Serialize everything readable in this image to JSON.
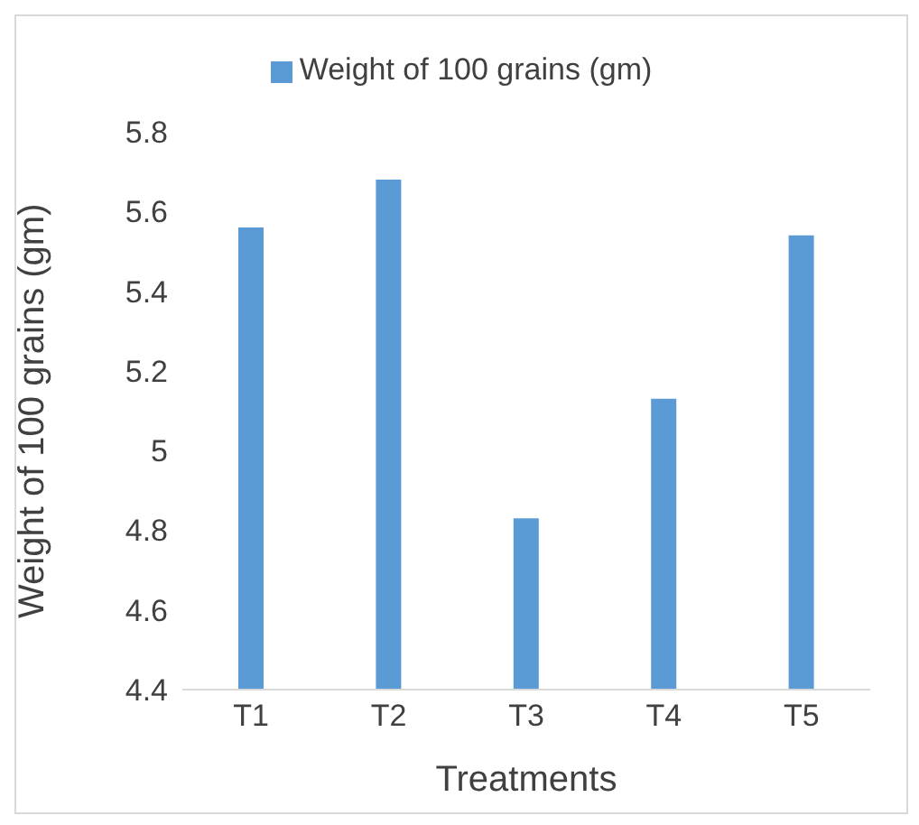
{
  "chart_data": {
    "type": "bar",
    "xlabel": "Treatments",
    "ylabel": "Weight of 100 grains (gm)",
    "categories": [
      "T1",
      "T2",
      "T3",
      "T4",
      "T5"
    ],
    "series": [
      {
        "name": "Weight of 100 grains (gm)",
        "color": "#5b9bd5",
        "values": [
          5.56,
          5.68,
          4.83,
          5.13,
          5.54
        ]
      }
    ],
    "ylim": [
      4.4,
      5.8
    ],
    "yticks": [
      4.4,
      4.6,
      4.8,
      5,
      5.2,
      5.4,
      5.6,
      5.8
    ],
    "grid": false,
    "legend": "top"
  }
}
